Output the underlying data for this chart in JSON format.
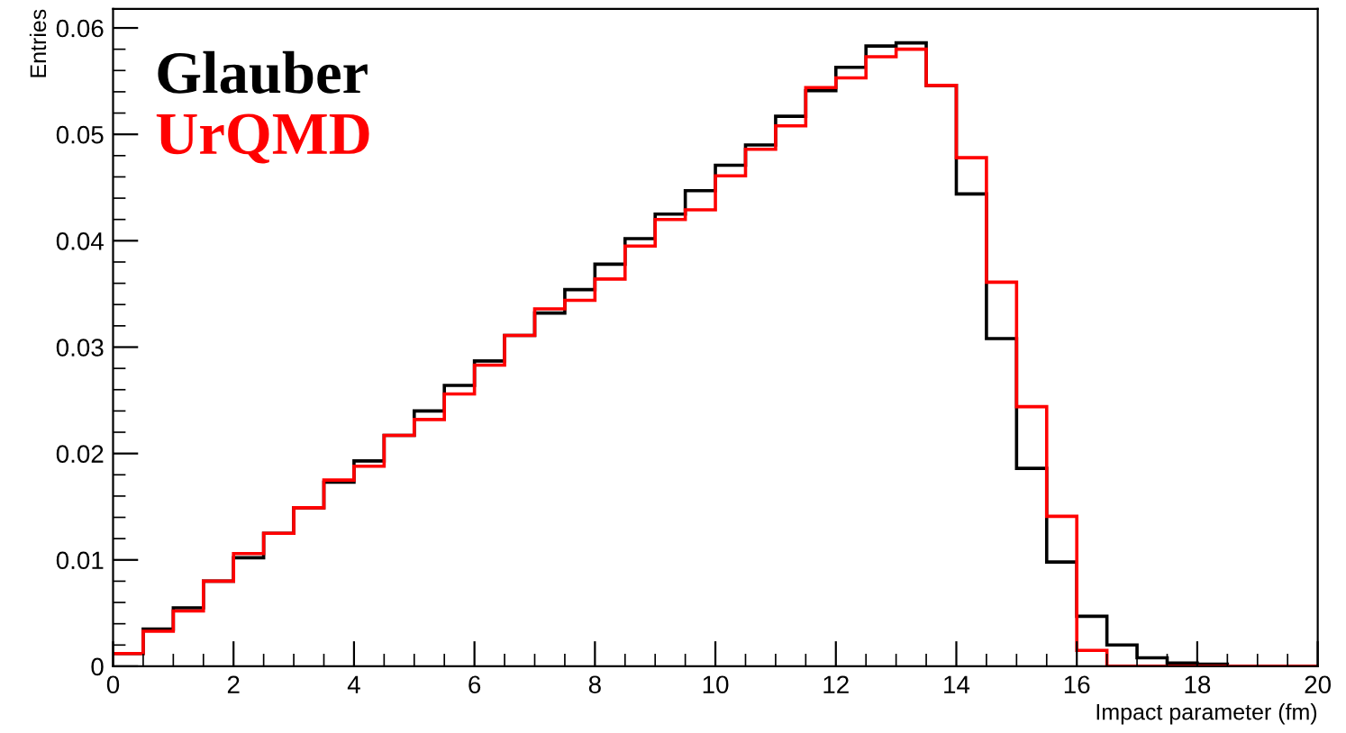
{
  "chart_data": {
    "type": "histogram",
    "xlabel": "Impact parameter (fm)",
    "ylabel": "Entries",
    "bins": [
      0,
      0.5,
      1,
      1.5,
      2,
      2.5,
      3,
      3.5,
      4,
      4.5,
      5,
      5.5,
      6,
      6.5,
      7,
      7.5,
      8,
      8.5,
      9,
      9.5,
      10,
      10.5,
      11,
      11.5,
      12,
      12.5,
      13,
      13.5,
      14,
      14.5,
      15,
      15.5,
      16,
      16.5,
      17,
      17.5,
      18,
      18.5,
      19,
      19.5,
      20
    ],
    "series": [
      {
        "name": "Glauber",
        "color": "#000000",
        "values": [
          0.0012,
          0.0035,
          0.0055,
          0.008,
          0.0102,
          0.0125,
          0.0149,
          0.0173,
          0.0193,
          0.0217,
          0.024,
          0.0264,
          0.0287,
          0.0311,
          0.0332,
          0.0354,
          0.0378,
          0.0402,
          0.0425,
          0.0447,
          0.0471,
          0.049,
          0.0517,
          0.0541,
          0.0563,
          0.0583,
          0.0586,
          0.0546,
          0.0444,
          0.0308,
          0.0186,
          0.0098,
          0.0047,
          0.002,
          0.0008,
          0.0003,
          0.0002,
          0,
          0,
          0
        ]
      },
      {
        "name": "UrQMD",
        "color": "#ff0000",
        "values": [
          0.0012,
          0.0033,
          0.0052,
          0.008,
          0.0106,
          0.0125,
          0.0149,
          0.0175,
          0.0188,
          0.0217,
          0.0232,
          0.0256,
          0.0283,
          0.0311,
          0.0336,
          0.0344,
          0.0364,
          0.0395,
          0.042,
          0.0429,
          0.0461,
          0.0486,
          0.0508,
          0.0544,
          0.0553,
          0.0573,
          0.058,
          0.0546,
          0.0478,
          0.0361,
          0.0244,
          0.0141,
          0.0015,
          0,
          0,
          0,
          0,
          0,
          0,
          0
        ]
      }
    ],
    "xlim": [
      0,
      20
    ],
    "xticks": [
      0,
      2,
      4,
      6,
      8,
      10,
      12,
      14,
      16,
      18,
      20
    ],
    "ylim": [
      0,
      0.0618
    ],
    "yticks": [
      0,
      0.01,
      0.02,
      0.03,
      0.04,
      0.05,
      0.06
    ],
    "legend": "top left",
    "grid": false
  }
}
